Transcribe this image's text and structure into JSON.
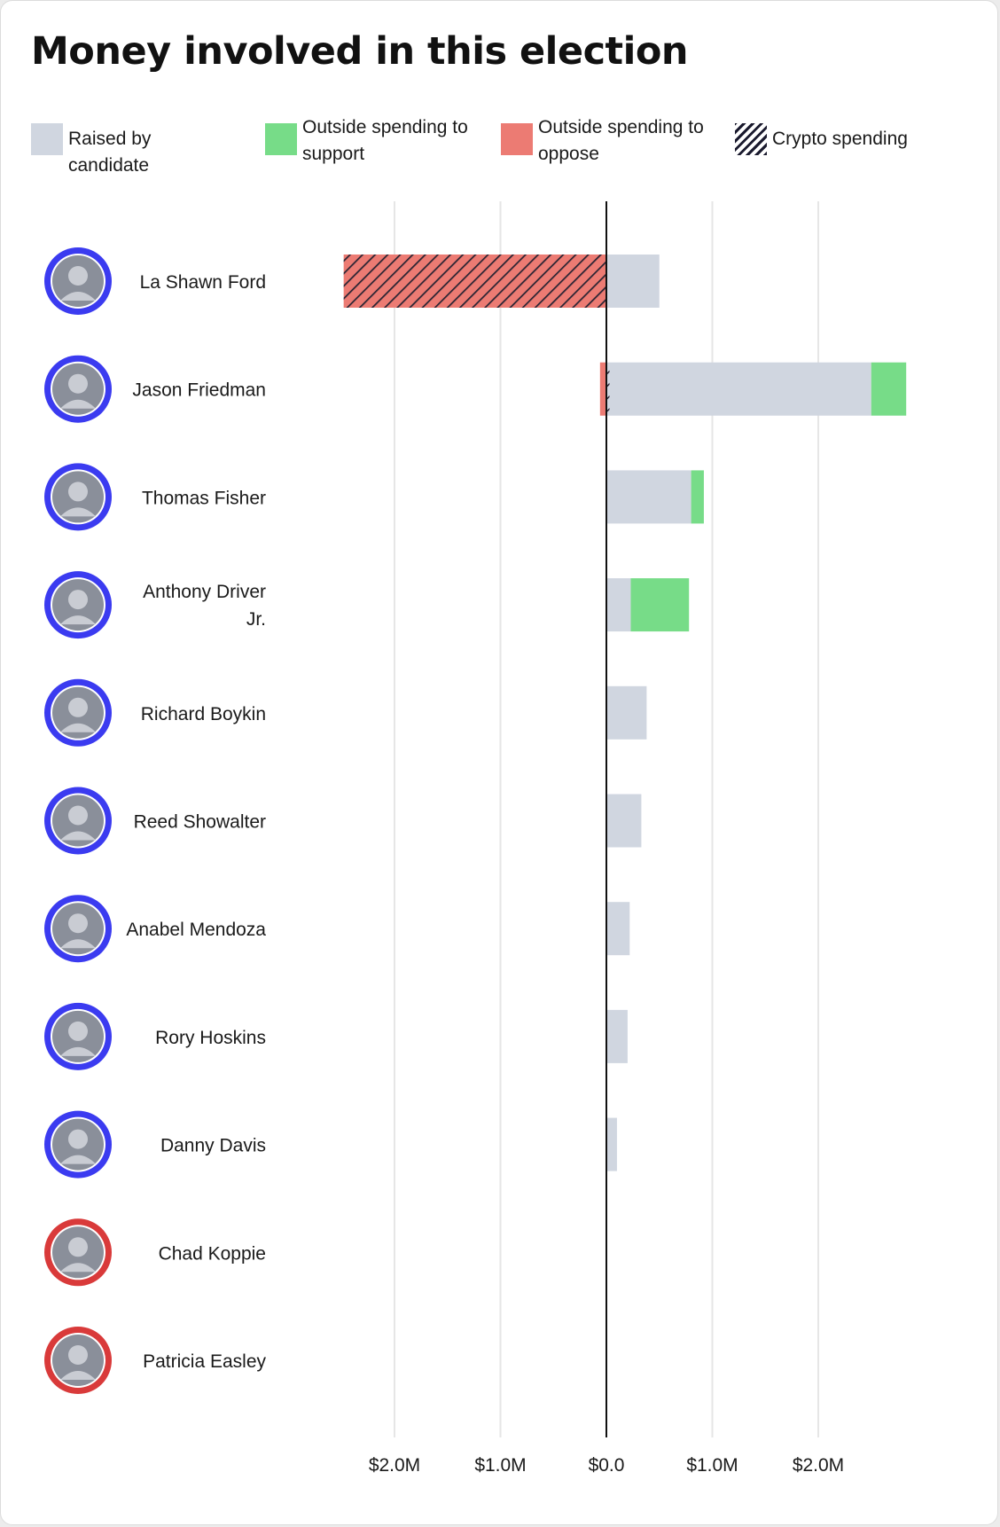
{
  "title": "Money involved in this election",
  "legend": {
    "raised": {
      "label": "Raised by candidate",
      "color": "#d0d6e0"
    },
    "support": {
      "label": "Outside spending to support",
      "color": "#77dc88"
    },
    "oppose": {
      "label": "Outside spending to oppose",
      "color": "#ec7b73"
    },
    "crypto": {
      "label": "Crypto spending",
      "color": "#1a1a2e"
    }
  },
  "chart_data": {
    "type": "bar",
    "orientation": "horizontal-diverging",
    "title": "Money involved in this election",
    "xlabel": "",
    "ylabel": "",
    "xlim": [
      -2.0,
      2.0
    ],
    "x_tick_values": [
      -2.0,
      -1.0,
      0.0,
      1.0,
      2.0
    ],
    "x_tick_labels": [
      "$2.0M",
      "$1.0M",
      "$0.0",
      "$1.0M",
      "$2.0M"
    ],
    "grid": true,
    "legend_position": "top",
    "units": "millions of USD",
    "categories": [
      "La Shawn Ford",
      "Jason Friedman",
      "Thomas Fisher",
      "Anthony Driver Jr.",
      "Richard Boykin",
      "Reed Showalter",
      "Anabel Mendoza",
      "Rory Hoskins",
      "Danny Davis",
      "Chad Koppie",
      "Patricia Easley"
    ],
    "series": [
      {
        "name": "Raised by candidate",
        "values": [
          0.5,
          2.5,
          0.8,
          0.23,
          0.38,
          0.33,
          0.22,
          0.2,
          0.1,
          0,
          0
        ]
      },
      {
        "name": "Outside spending to support",
        "values": [
          0,
          0.33,
          0.12,
          0.55,
          0,
          0,
          0,
          0,
          0,
          0,
          0
        ]
      },
      {
        "name": "Outside spending to oppose",
        "values": [
          2.48,
          0.06,
          0,
          0,
          0,
          0,
          0,
          0,
          0,
          0,
          0
        ]
      },
      {
        "name": "Crypto spending",
        "values": [
          2.48,
          0.03,
          0,
          0,
          0,
          0,
          0,
          0,
          0,
          0,
          0
        ]
      }
    ],
    "candidate_ring_colors": [
      "#3b3bf0",
      "#3b3bf0",
      "#3b3bf0",
      "#3b3bf0",
      "#3b3bf0",
      "#3b3bf0",
      "#3b3bf0",
      "#3b3bf0",
      "#3b3bf0",
      "#d93a3a",
      "#d93a3a"
    ]
  }
}
